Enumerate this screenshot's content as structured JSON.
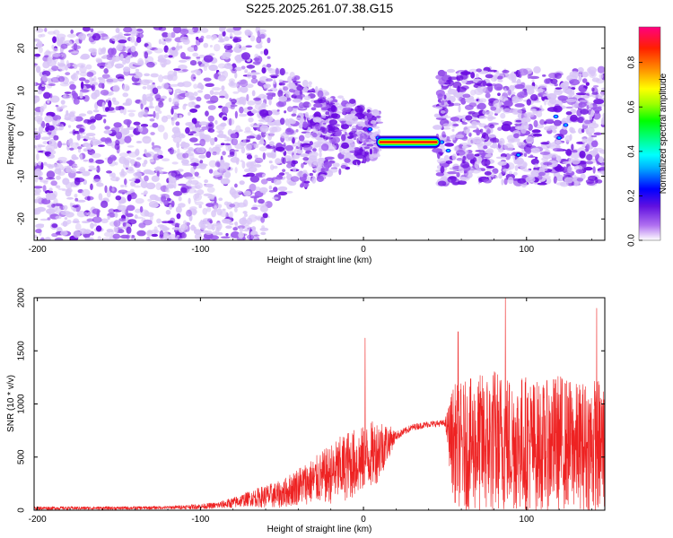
{
  "figure_title": "S225.2025.261.07.38.G15",
  "colors": {
    "snr_line": "#ee2222",
    "blob_light": "#d9c6f7",
    "blob_mid": "#9a55ee",
    "blob_dark": "#6a0ae0"
  },
  "chart_data": [
    {
      "type": "heatmap",
      "title": "S225.2025.261.07.38.G15",
      "xlabel": "Height of straight line (km)",
      "ylabel": "Frequency (Hz)",
      "xlim": [
        -202,
        148
      ],
      "ylim": [
        -25,
        25
      ],
      "xticks": [
        -200,
        -100,
        0,
        100
      ],
      "yticks": [
        -20,
        -10,
        0,
        10,
        20
      ],
      "colorbar": {
        "label": "Normalized spectral amplitude",
        "range": [
          0,
          0.96
        ],
        "ticks": [
          0.0,
          0.2,
          0.4,
          0.6,
          0.8
        ],
        "tick_labels": [
          "0.0",
          "0.2",
          "0.4",
          "0.6",
          "0.8"
        ],
        "colormap": [
          "#ffffff",
          "#8a2be2",
          "#0000ff",
          "#00ffff",
          "#00ff00",
          "#ffff00",
          "#ff8000",
          "#ff0000",
          "#ff0080"
        ]
      },
      "features": [
        {
          "name": "noise field",
          "x_range": [
            -202,
            -58
          ],
          "freq_range": [
            -25,
            25
          ],
          "amplitude": 0.05
        },
        {
          "name": "converging band",
          "x_range": [
            -58,
            10
          ],
          "freq_range": [
            -15,
            12
          ],
          "amplitude": 0.1
        },
        {
          "name": "tone",
          "x_range": [
            10,
            45
          ],
          "freq": -2,
          "amplitude": 0.9
        },
        {
          "name": "post-signal band",
          "x_range": [
            45,
            148
          ],
          "freq_range": [
            -12,
            15
          ],
          "amplitude": 0.1
        }
      ]
    },
    {
      "type": "line",
      "xlabel": "Height of straight line (km)",
      "ylabel": "SNR (10 * v/v)",
      "xlim": [
        -202,
        148
      ],
      "ylim": [
        0,
        2000
      ],
      "xticks": [
        -200,
        -100,
        0,
        100
      ],
      "yticks": [
        0,
        500,
        1000,
        1500,
        2000
      ],
      "series": [
        {
          "name": "SNR",
          "x": [
            -200,
            -150,
            -120,
            -100,
            -90,
            -80,
            -70,
            -60,
            -50,
            -40,
            -30,
            -20,
            -10,
            0,
            10,
            20,
            30,
            40,
            50,
            55,
            60,
            70,
            80,
            90,
            100,
            110,
            120,
            130,
            140,
            148
          ],
          "mean": [
            20,
            20,
            25,
            35,
            45,
            70,
            110,
            130,
            150,
            230,
            280,
            340,
            420,
            470,
            580,
            700,
            780,
            810,
            820,
            640,
            600,
            620,
            650,
            640,
            630,
            600,
            650,
            600,
            600,
            600
          ],
          "spread": [
            15,
            15,
            15,
            25,
            30,
            50,
            70,
            110,
            130,
            180,
            220,
            280,
            330,
            320,
            300,
            40,
            30,
            30,
            30,
            550,
            600,
            650,
            700,
            650,
            650,
            600,
            650,
            600,
            650,
            650
          ],
          "peaks": [
            {
              "x": 1,
              "value": 1620
            },
            {
              "x": 87,
              "value": 2000
            },
            {
              "x": 58,
              "value": 1680
            },
            {
              "x": 143,
              "value": 1900
            }
          ]
        }
      ]
    }
  ]
}
